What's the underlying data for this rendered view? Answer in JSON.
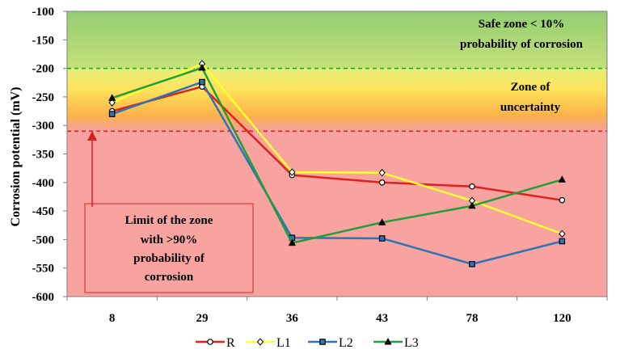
{
  "chart_data": {
    "type": "line",
    "title": "",
    "xlabel": "",
    "ylabel": "Corrosion potential (mV)",
    "categories": [
      "8",
      "29",
      "36",
      "43",
      "78",
      "120"
    ],
    "ylim": [
      -600,
      -100
    ],
    "yticks": [
      -100,
      -150,
      -200,
      -250,
      -300,
      -350,
      -400,
      -450,
      -500,
      -550,
      -600
    ],
    "series": [
      {
        "name": "R",
        "color": "#e0201b",
        "marker": "circle",
        "values": [
          -275,
          -232,
          -387,
          -400,
          -407,
          -431
        ]
      },
      {
        "name": "L1",
        "color": "#ffff33",
        "marker": "diamond",
        "values": [
          -260,
          -192,
          -382,
          -383,
          -432,
          -490
        ]
      },
      {
        "name": "L2",
        "color": "#2e75b6",
        "marker": "square",
        "values": [
          -280,
          -224,
          -497,
          -498,
          -543,
          -503
        ]
      },
      {
        "name": "L3",
        "color": "#1f9e3a",
        "marker": "triangle",
        "values": [
          -252,
          -199,
          -506,
          -470,
          -441,
          -395
        ]
      }
    ],
    "thresholds": [
      {
        "value": -200,
        "color": "#1aa51a"
      },
      {
        "value": -310,
        "color": "#e02020"
      }
    ],
    "zones": {
      "safe": {
        "from": -100,
        "to": -200,
        "color": "#9dd27a"
      },
      "uncertain": {
        "from": -200,
        "to": -310
      },
      "high": {
        "from": -310,
        "to": -600,
        "color": "#f8a3a0"
      }
    },
    "annotations": {
      "safe_line1": "Safe zone < 10%",
      "safe_line2": "probability of corrosion",
      "uncertain_line1": "Zone of",
      "uncertain_line2": "uncertainty",
      "limit_line1": "Limit of the zone",
      "limit_line2": "with >90%",
      "limit_line3": "probability of",
      "limit_line4": "corrosion"
    },
    "legend_position": "bottom",
    "grid": false
  }
}
